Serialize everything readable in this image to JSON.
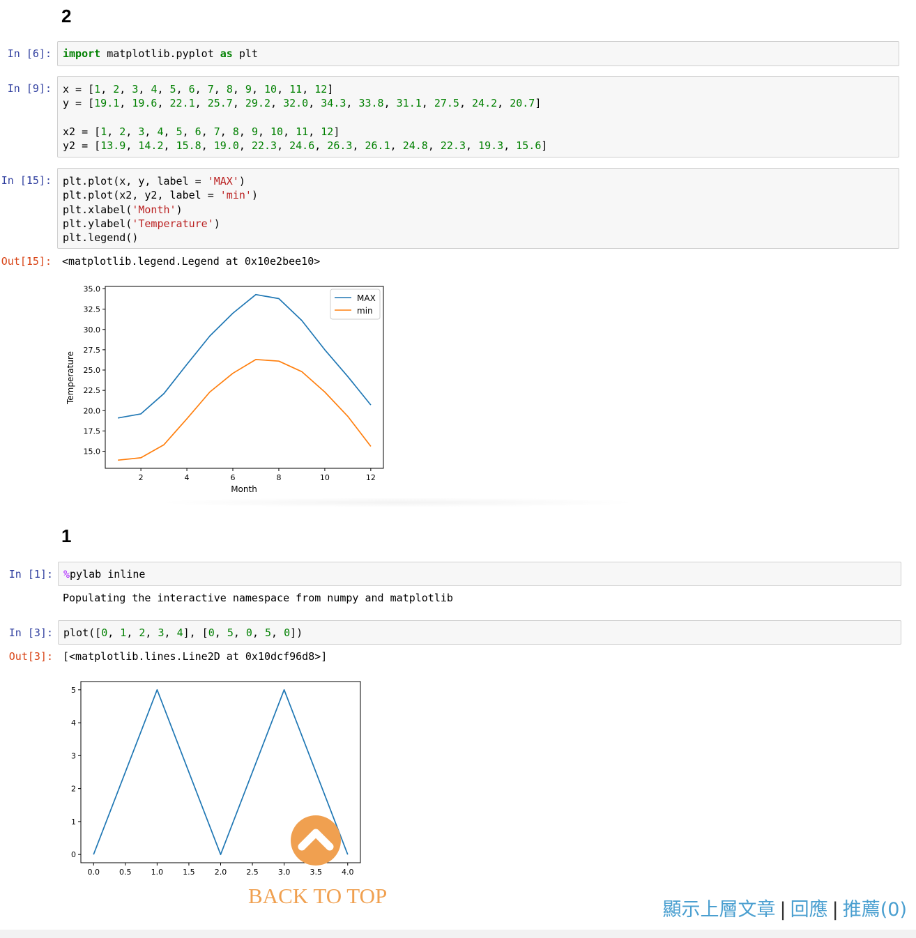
{
  "section2": {
    "heading": "2",
    "cell6": {
      "prompt": "In [6]:"
    },
    "cell9": {
      "prompt": "In [9]:"
    },
    "cell15": {
      "prompt": "In [15]:",
      "out_prompt": "Out[15]:",
      "output": "<matplotlib.legend.Legend at 0x10e2bee10>"
    }
  },
  "section1": {
    "heading": "1",
    "cell1": {
      "prompt": "In [1]:",
      "output": "Populating the interactive namespace from numpy and matplotlib"
    },
    "cell3": {
      "prompt": "In [3]:",
      "out_prompt": "Out[3]:",
      "output": "[<matplotlib.lines.Line2D at 0x10dcf96d8>]"
    }
  },
  "back_to_top": {
    "label": "BACK TO TOP",
    "icon": "chevron-up-icon",
    "color": "#f0a050"
  },
  "footer": {
    "show_parent": "顯示上層文章",
    "reply": "回應",
    "recommend": "推薦(0)",
    "separator": "|",
    "link_color": "#4a9fd0"
  },
  "chart_data": [
    {
      "type": "line",
      "title": "",
      "xlabel": "Month",
      "ylabel": "Temperature",
      "xlim": [
        0.45,
        12.55
      ],
      "ylim": [
        12.9,
        35.3
      ],
      "xticks": [
        "2",
        "4",
        "6",
        "8",
        "10",
        "12"
      ],
      "yticks": [
        "15.0",
        "17.5",
        "20.0",
        "22.5",
        "25.0",
        "27.5",
        "30.0",
        "32.5",
        "35.0"
      ],
      "legend_position": "top-right",
      "series": [
        {
          "name": "MAX",
          "color": "#1f77b4",
          "x": [
            1,
            2,
            3,
            4,
            5,
            6,
            7,
            8,
            9,
            10,
            11,
            12
          ],
          "y": [
            19.1,
            19.6,
            22.1,
            25.7,
            29.2,
            32.0,
            34.3,
            33.8,
            31.1,
            27.5,
            24.2,
            20.7
          ]
        },
        {
          "name": "min",
          "color": "#ff7f0e",
          "x": [
            1,
            2,
            3,
            4,
            5,
            6,
            7,
            8,
            9,
            10,
            11,
            12
          ],
          "y": [
            13.9,
            14.2,
            15.8,
            19.0,
            22.3,
            24.6,
            26.3,
            26.1,
            24.8,
            22.3,
            19.3,
            15.6
          ]
        }
      ]
    },
    {
      "type": "line",
      "title": "",
      "xlabel": "",
      "ylabel": "",
      "xlim": [
        -0.2,
        4.2
      ],
      "ylim": [
        -0.25,
        5.25
      ],
      "xticks": [
        "0.0",
        "0.5",
        "1.0",
        "1.5",
        "2.0",
        "2.5",
        "3.0",
        "3.5",
        "4.0"
      ],
      "yticks": [
        "0",
        "1",
        "2",
        "3",
        "4",
        "5"
      ],
      "series": [
        {
          "color": "#1f77b4",
          "x": [
            0,
            1,
            2,
            3,
            4
          ],
          "y": [
            0,
            5,
            0,
            5,
            0
          ]
        }
      ]
    }
  ]
}
